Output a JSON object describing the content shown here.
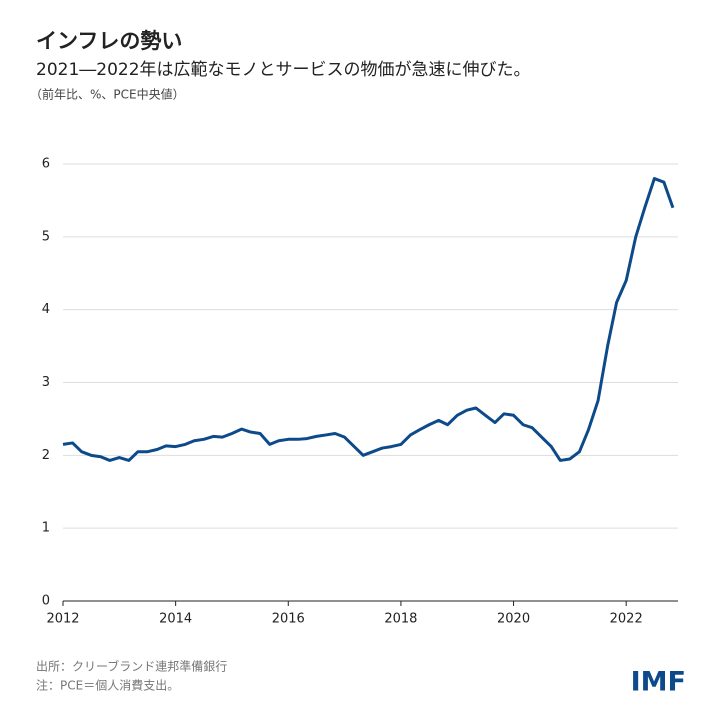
{
  "chart_data": {
    "type": "line",
    "title": "インフレの勢い",
    "subtitle": "2021―2022年は広範なモノとサービスの物価が急速に伸びた。",
    "unit_note": "（前年比、%、PCE中央値）",
    "source": [
      "出所：クリーブランド連邦準備銀行",
      "注：PCE＝個人消費支出。"
    ],
    "logo": "IMF",
    "x": [
      2012,
      2012.17,
      2012.33,
      2012.5,
      2012.67,
      2012.83,
      2013,
      2013.17,
      2013.33,
      2013.5,
      2013.67,
      2013.83,
      2014,
      2014.17,
      2014.33,
      2014.5,
      2014.67,
      2014.83,
      2015,
      2015.17,
      2015.33,
      2015.5,
      2015.67,
      2015.83,
      2016,
      2016.17,
      2016.33,
      2016.5,
      2016.67,
      2016.83,
      2017,
      2017.17,
      2017.33,
      2017.5,
      2017.67,
      2017.83,
      2018,
      2018.17,
      2018.33,
      2018.5,
      2018.67,
      2018.83,
      2019,
      2019.17,
      2019.33,
      2019.5,
      2019.67,
      2019.83,
      2020,
      2020.17,
      2020.33,
      2020.5,
      2020.67,
      2020.83,
      2021,
      2021.17,
      2021.33,
      2021.5,
      2021.67,
      2021.83,
      2022,
      2022.17,
      2022.33,
      2022.5,
      2022.67,
      2022.83
    ],
    "series": [
      {
        "name": "PCE中央値",
        "color": "#0d4a8a",
        "values": [
          2.15,
          2.17,
          2.05,
          2.0,
          1.98,
          1.93,
          1.97,
          1.93,
          2.05,
          2.05,
          2.08,
          2.13,
          2.12,
          2.15,
          2.2,
          2.22,
          2.26,
          2.25,
          2.3,
          2.36,
          2.32,
          2.3,
          2.15,
          2.2,
          2.22,
          2.22,
          2.23,
          2.26,
          2.28,
          2.3,
          2.25,
          2.12,
          2.0,
          2.05,
          2.1,
          2.12,
          2.15,
          2.28,
          2.35,
          2.42,
          2.48,
          2.42,
          2.55,
          2.62,
          2.65,
          2.55,
          2.45,
          2.57,
          2.55,
          2.42,
          2.38,
          2.25,
          2.12,
          1.93,
          1.95,
          2.05,
          2.35,
          2.75,
          3.5,
          4.1,
          4.4,
          5.0,
          5.4,
          5.8,
          5.75,
          5.4
        ]
      }
    ],
    "xlim": [
      2012,
      2022.92
    ],
    "xticks": [
      2012,
      2014,
      2016,
      2018,
      2020,
      2022
    ],
    "ylim": [
      0,
      6
    ],
    "yticks": [
      0,
      1,
      2,
      3,
      4,
      5,
      6
    ],
    "grid": true
  }
}
